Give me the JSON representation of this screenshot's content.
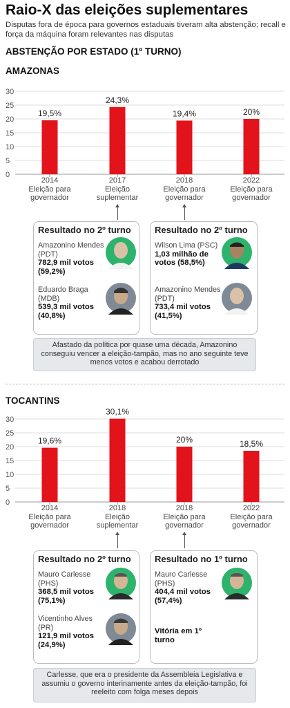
{
  "header": {
    "title": "Raio-X das eleições suplementares",
    "subtitle": "Disputas fora de época para governos estaduais tiveram alta abstenção; recall e força da máquina foram relevantes nas disputas",
    "section_title": "ABSTENÇÃO POR ESTADO (1º TURNO)"
  },
  "amazonas": {
    "state": "AMAZONAS",
    "categories": [
      {
        "year": "2014",
        "label": "Eleição para governador"
      },
      {
        "year": "2017",
        "label": "Eleição suplementar"
      },
      {
        "year": "2018",
        "label": "Eleição para governador"
      },
      {
        "year": "2022",
        "label": "Eleição para governador"
      }
    ],
    "box_left": {
      "title": "Resultado no 2º turno",
      "c1_name": "Amazonino Mendes (PDT)",
      "c1_votes": "782,9 mil votos (59,2%)",
      "c2_name": "Eduardo Braga (MDB)",
      "c2_votes": "539,3 mil votos (40,8%)"
    },
    "box_right": {
      "title": "Resultado no 2º turno",
      "c1_name": "Wilson Lima (PSC)",
      "c1_votes": "1,03 milhão de votos (58,5%)",
      "c2_name": "Amazonino Mendes (PDT)",
      "c2_votes": "733,4 mil votos (41,5%)"
    },
    "note": "Afastado da política por quase uma década, Amazonino conseguiu vencer a eleição-tampão, mas no ano seguinte teve menos votos e acabou derrotado"
  },
  "tocantins": {
    "state": "TOCANTINS",
    "categories": [
      {
        "year": "2014",
        "label": "Eleição para governador"
      },
      {
        "year": "2018",
        "label": "Eleição suplementar"
      },
      {
        "year": "2018",
        "label": "Eleição para governador"
      },
      {
        "year": "2022",
        "label": "Eleição para governador"
      }
    ],
    "box_left": {
      "title": "Resultado no 2º turno",
      "c1_name": "Mauro Carlesse (PHS)",
      "c1_votes": "368,5 mil votos (75,1%)",
      "c2_name": "Vicentinho Alves (PR)",
      "c2_votes": "121,9 mil votos (24,9%)"
    },
    "box_right": {
      "title": "Resultado no 1º turno",
      "c1_name": "Mauro Carlesse (PHS)",
      "c1_votes": "404,4 mil votos (57,4%)",
      "victory": "Vitória em 1º turno"
    },
    "note": "Carlesse, que era o presidente da Assembleia Legislativa e assumiu o governo interinamente antes da eleição-tampão, foi reeleito com folga meses depois"
  },
  "colors": {
    "bar": "#e3131b",
    "winner": "#2db36b",
    "grid": "#dddddd"
  },
  "chart_data": [
    {
      "type": "bar",
      "title": "AMAZONAS",
      "categories": [
        "2014",
        "2017",
        "2018",
        "2022"
      ],
      "values": [
        19.5,
        24.3,
        19.4,
        20
      ],
      "labels": [
        "19,5%",
        "24,3%",
        "19,4%",
        "20%"
      ],
      "yticks": [
        0,
        5,
        10,
        15,
        20,
        25,
        30
      ],
      "ylim": [
        0,
        30
      ],
      "grid": true
    },
    {
      "type": "bar",
      "title": "TOCANTINS",
      "categories": [
        "2014",
        "2018",
        "2018",
        "2022"
      ],
      "values": [
        19.6,
        30.1,
        20,
        18.5
      ],
      "labels": [
        "19,6%",
        "30,1%",
        "20%",
        "18,5%"
      ],
      "yticks": [
        0,
        5,
        10,
        15,
        20,
        25,
        30
      ],
      "ylim": [
        0,
        30
      ],
      "grid": true
    }
  ]
}
